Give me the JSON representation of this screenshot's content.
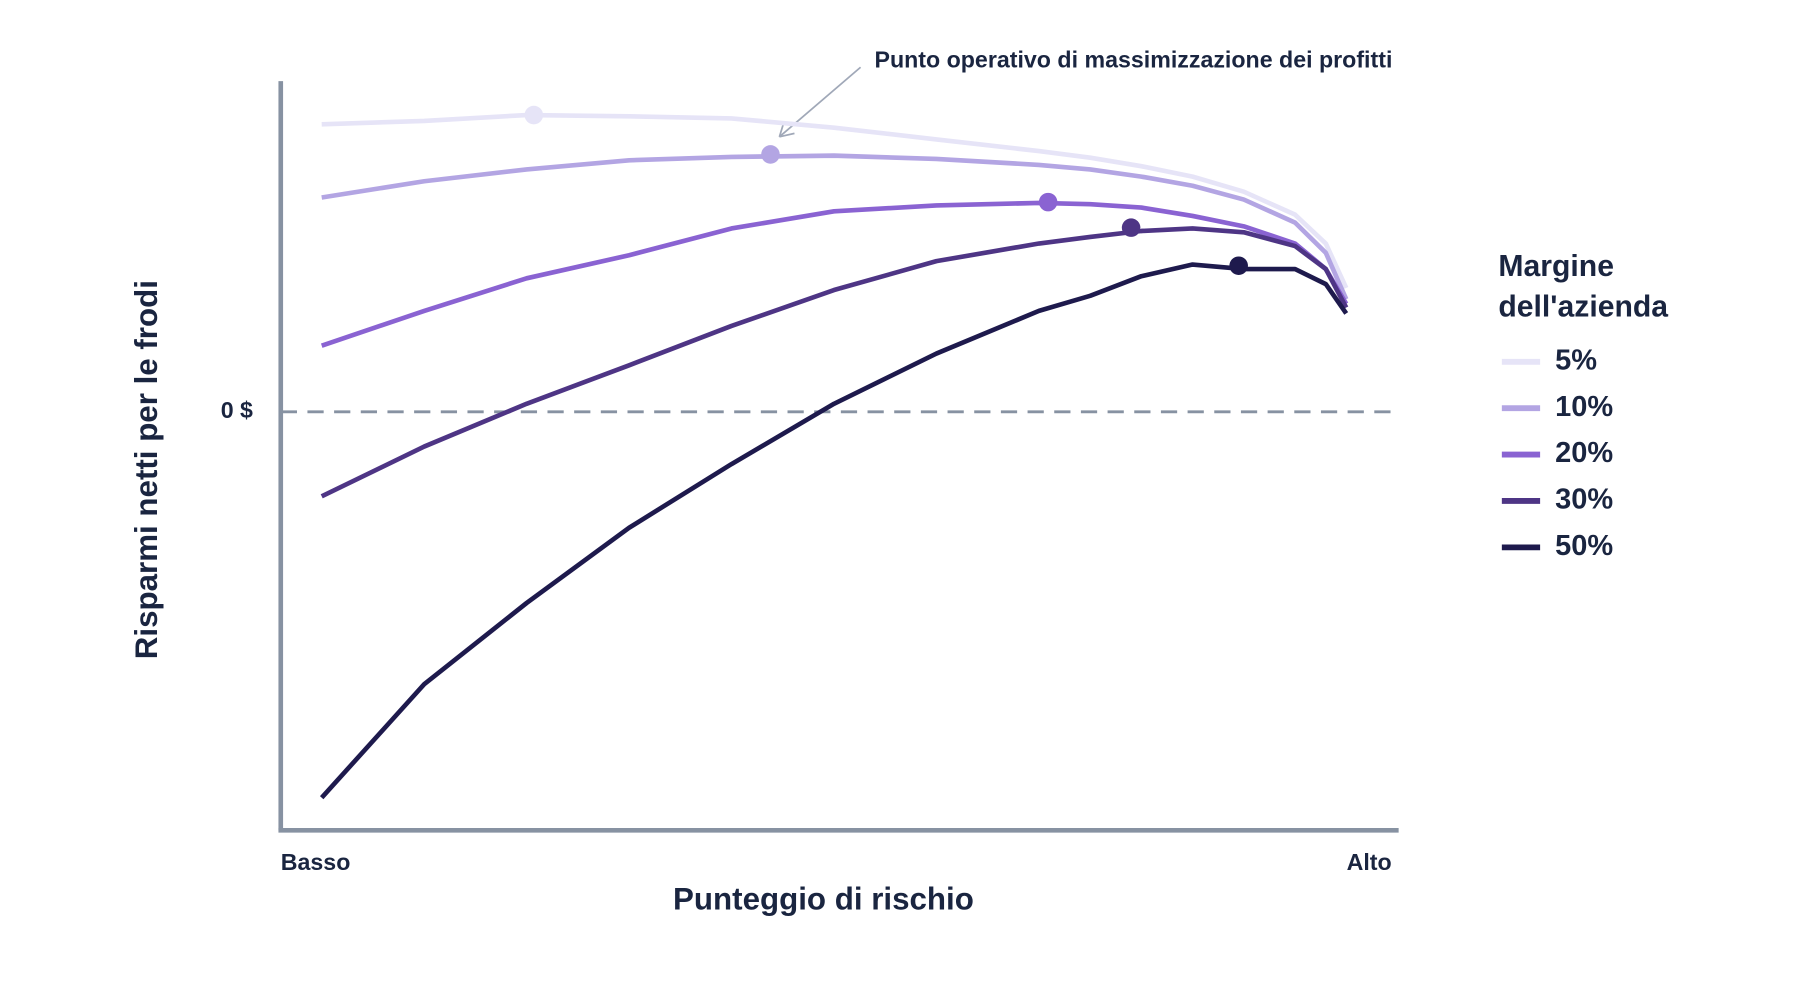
{
  "chart_data": {
    "type": "line",
    "annotation": "Punto operativo di massimizzazione dei profitti",
    "xlabel": "Punteggio di rischio",
    "ylabel": "Risparmi netti per le frodi",
    "legend_title": "Margine dell'azienda",
    "legend": "right",
    "x": [
      0,
      10,
      20,
      30,
      40,
      50,
      60,
      70,
      75,
      80,
      85,
      90,
      95,
      98,
      100
    ],
    "xlim": [
      -4,
      105
    ],
    "xticks": [
      {
        "value": -4,
        "label": "Basso"
      },
      {
        "value": 105,
        "label": "Alto"
      }
    ],
    "ylim": [
      -100,
      79
    ],
    "yticks": [
      {
        "value": 0,
        "label": "0 $"
      }
    ],
    "series": [
      {
        "name": "5%",
        "color": "#e6e4f7",
        "values": [
          68.7,
          69.5,
          70.9,
          70.6,
          70.1,
          67.9,
          65.1,
          62.3,
          60.7,
          58.7,
          56.2,
          52.6,
          47.1,
          40.2,
          29.6
        ],
        "peak_x": 20.7,
        "peak_value": 70.9
      },
      {
        "name": "10%",
        "color": "#b3a5e3",
        "values": [
          51.2,
          55.1,
          57.9,
          60.1,
          60.9,
          61.2,
          60.4,
          59.0,
          57.9,
          56.2,
          54.0,
          50.7,
          45.2,
          38.0,
          26.9
        ],
        "peak_x": 43.8,
        "peak_value": 61.5
      },
      {
        "name": "20%",
        "color": "#8a63d2",
        "values": [
          15.8,
          24.1,
          31.9,
          37.4,
          43.8,
          47.9,
          49.3,
          49.9,
          49.6,
          48.8,
          46.8,
          44.3,
          40.2,
          34.1,
          25.8
        ],
        "peak_x": 70.9,
        "peak_value": 50.1
      },
      {
        "name": "30%",
        "color": "#4e3585",
        "values": [
          -20.2,
          -8.3,
          1.9,
          11.1,
          20.5,
          29.1,
          36.0,
          40.2,
          41.8,
          43.2,
          43.8,
          42.9,
          39.6,
          34.1,
          24.9
        ],
        "peak_x": 79,
        "peak_value": 44.0
      },
      {
        "name": "50%",
        "color": "#1e1a4d",
        "values": [
          -92.2,
          -65.1,
          -45.7,
          -27.7,
          -12.5,
          1.9,
          13.9,
          24.1,
          27.7,
          32.4,
          35.2,
          34.1,
          34.1,
          30.5,
          23.5
        ],
        "peak_x": 89.5,
        "peak_value": 34.9
      }
    ]
  }
}
